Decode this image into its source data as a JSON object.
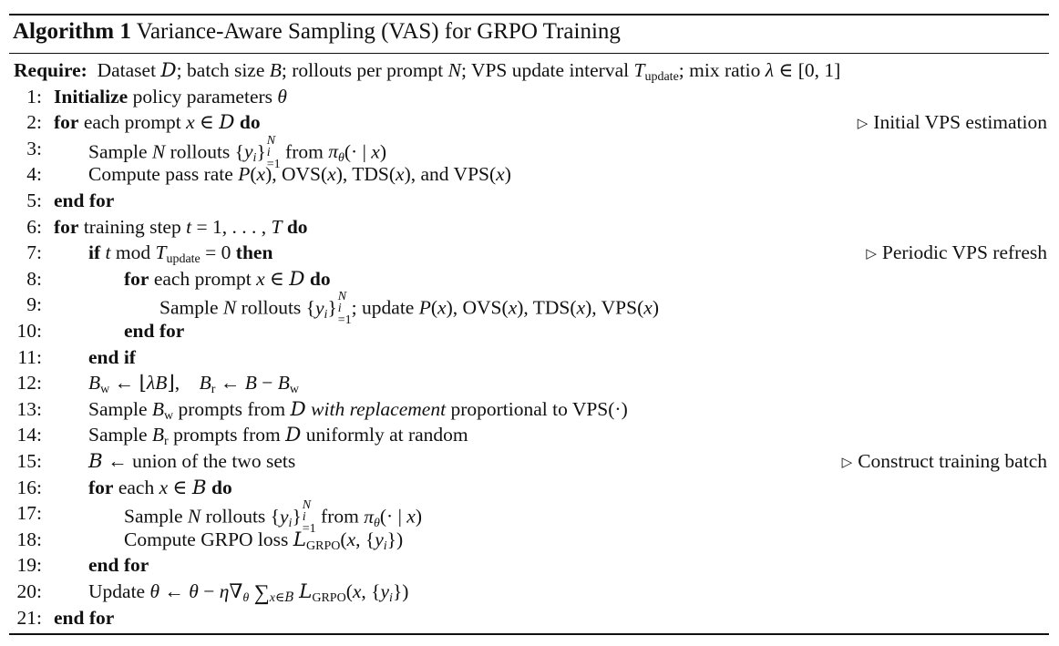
{
  "algorithm": {
    "label": "Algorithm 1",
    "title": "Variance-Aware Sampling (VAS) for GRPO Training"
  },
  "require": {
    "label": "Require:",
    "t1": "Dataset ",
    "t2": "; batch size ",
    "t3": "; rollouts per prompt ",
    "t4": "; VPS update interval ",
    "t5": "; mix ratio "
  },
  "lines": [
    {
      "num": "1:",
      "kw1": "Initialize",
      "text": " policy parameters "
    },
    {
      "num": "2:",
      "kw1": "for",
      "text": " each prompt ",
      "kw2": " do",
      "comment": "Initial VPS estimation"
    },
    {
      "num": "3:",
      "text": "Sample ",
      "text2": " rollouts ",
      "text3": " from "
    },
    {
      "num": "4:",
      "text": "Compute pass rate ",
      "t2": "OVS",
      "t3": "TDS",
      "t4": ", and ",
      "t5": "VPS"
    },
    {
      "num": "5:",
      "kw1": "end for"
    },
    {
      "num": "6:",
      "kw1": "for",
      "text": " training step ",
      "kw2": " do"
    },
    {
      "num": "7:",
      "kw1": "if",
      "kw2": " then",
      "comment": "Periodic VPS refresh"
    },
    {
      "num": "8:",
      "kw1": "for",
      "text": " each prompt ",
      "kw2": " do"
    },
    {
      "num": "9:",
      "text": "Sample ",
      "text2": " rollouts ",
      "text3": "; update ",
      "t2": "OVS",
      "t3": "TDS",
      "t5": "VPS"
    },
    {
      "num": "10:",
      "kw1": "end for"
    },
    {
      "num": "11:",
      "kw1": "end if"
    },
    {
      "num": "12:"
    },
    {
      "num": "13:",
      "text": "Sample ",
      "text2": " prompts from ",
      "em": "with replacement",
      "text3": " proportional to ",
      "t5": "VPS"
    },
    {
      "num": "14:",
      "text": "Sample ",
      "text2": " prompts from ",
      "text3": " uniformly at random"
    },
    {
      "num": "15:",
      "text": " union of the two sets",
      "comment": "Construct training batch"
    },
    {
      "num": "16:",
      "kw1": "for",
      "text": " each ",
      "kw2": " do"
    },
    {
      "num": "17:",
      "text": "Sample ",
      "text2": " rollouts ",
      "text3": " from "
    },
    {
      "num": "18:",
      "text": "Compute GRPO loss "
    },
    {
      "num": "19:",
      "kw1": "end for"
    },
    {
      "num": "20:",
      "text": "Update "
    },
    {
      "num": "21:",
      "kw1": "end for"
    }
  ]
}
